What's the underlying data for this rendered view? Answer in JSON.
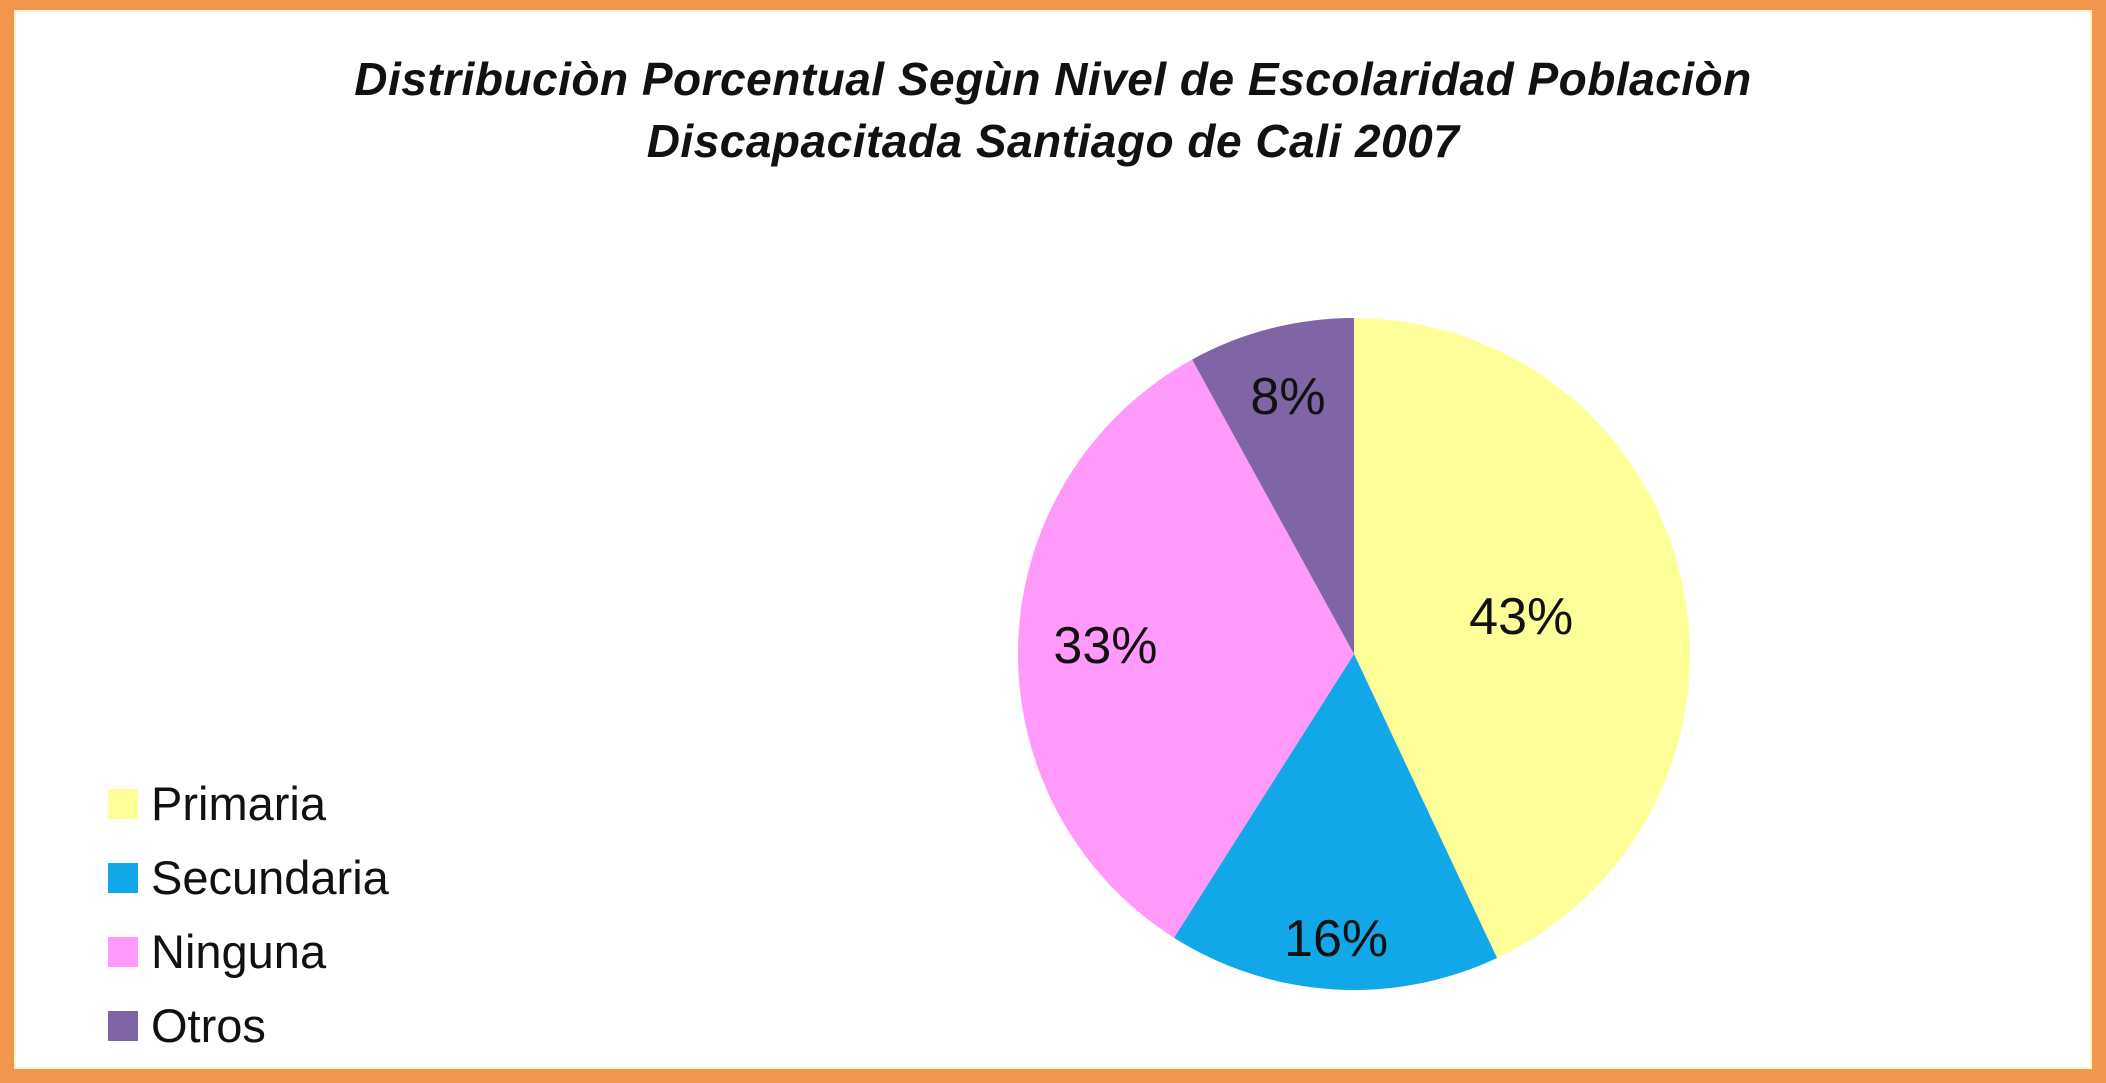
{
  "chart_data": {
    "type": "pie",
    "title_lines": [
      "Distribuciòn Porcentual Segùn Nivel de Escolaridad Poblaciòn",
      "Discapacitada Santiago de Cali 2007"
    ],
    "series": [
      {
        "label": "Primaria",
        "value": 43,
        "data_label": "43%",
        "color": "#FFFF99",
        "label_radius_frac": 0.51
      },
      {
        "label": "Secundaria",
        "value": 16,
        "data_label": "16%",
        "color": "#12A7E8",
        "label_radius_frac": 0.85
      },
      {
        "label": "Ninguna",
        "value": 33,
        "data_label": "33%",
        "color": "#FF99FA",
        "label_radius_frac": 0.74
      },
      {
        "label": "Otros",
        "value": 8,
        "data_label": "8%",
        "color": "#7F65A5",
        "label_radius_frac": 0.79
      }
    ],
    "total": 100,
    "start_angle_deg": 0,
    "direction": "clockwise",
    "legend_position": "bottom-left",
    "data_label_color": "#111111"
  },
  "frame": {
    "border_color": "#F2954D",
    "inner_line_color": "#FFF6C8",
    "background": "#FFFFFF",
    "text_color": "#111111"
  }
}
